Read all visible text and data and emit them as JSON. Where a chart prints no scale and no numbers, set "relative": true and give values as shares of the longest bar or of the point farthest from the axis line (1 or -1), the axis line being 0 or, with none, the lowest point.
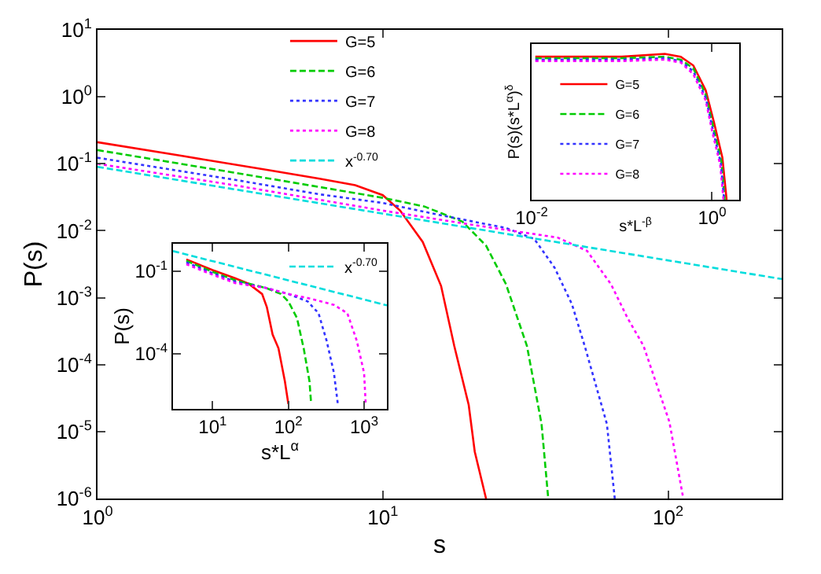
{
  "chart_data": [
    {
      "type": "line",
      "xlabel": "s",
      "ylabel": "P(s)",
      "log": "xy",
      "legend": "top left",
      "xlim": [
        1,
        250
      ],
      "ylim": [
        1e-06,
        10
      ],
      "xticks": [
        {
          "value": 1,
          "label": "10$^{0}$"
        },
        {
          "value": 10,
          "label": "10$^{1}$"
        },
        {
          "value": 100,
          "label": "10$^{2}$"
        }
      ],
      "yticks": [
        {
          "value": 1e-06,
          "label": "10$^{-6}$"
        },
        {
          "value": 1e-05,
          "label": "10$^{-5}$"
        },
        {
          "value": 0.0001,
          "label": "10$^{-4}$"
        },
        {
          "value": 0.001,
          "label": "10$^{-3}$"
        },
        {
          "value": 0.01,
          "label": "10$^{-2}$"
        },
        {
          "value": 0.1,
          "label": "10$^{-1}$"
        },
        {
          "value": 1,
          "label": "10$^{0}$"
        },
        {
          "value": 10,
          "label": "10$^{1}$"
        }
      ],
      "series": [
        {
          "name": "G=5",
          "color": "#ff0000",
          "line_style": "solid",
          "x": [
            1,
            2,
            4,
            6,
            8,
            10,
            11.5,
            13.8,
            16,
            17.8,
            20,
            21,
            23
          ],
          "values": [
            0.21,
            0.13,
            0.08,
            0.06,
            0.048,
            0.034,
            0.02,
            0.0068,
            0.0015,
            0.00019,
            2.5e-05,
            5e-06,
            1e-06
          ]
        },
        {
          "name": "G=6",
          "color": "#00cc00",
          "line_style": "dashed",
          "x": [
            1,
            3,
            6,
            10,
            14,
            19,
            23,
            27,
            32,
            36,
            38
          ],
          "values": [
            0.16,
            0.074,
            0.045,
            0.031,
            0.023,
            0.0137,
            0.006,
            0.0016,
            0.00019,
            1.3e-05,
            1e-06
          ]
        },
        {
          "name": "G=7",
          "color": "#3333ff",
          "line_style": "dotted",
          "x": [
            1,
            3,
            6,
            10,
            16,
            27,
            34,
            40,
            46,
            51,
            61,
            65
          ],
          "values": [
            0.123,
            0.058,
            0.035,
            0.026,
            0.017,
            0.011,
            0.0075,
            0.0028,
            0.0008,
            0.00019,
            1.3e-05,
            1e-06
          ]
        },
        {
          "name": "G=8",
          "color": "#ff00ff",
          "line_style": "dotted",
          "x": [
            1,
            3,
            6,
            10,
            20,
            41,
            52,
            63,
            72,
            82,
            101,
            113
          ],
          "values": [
            0.1,
            0.048,
            0.029,
            0.02,
            0.0125,
            0.0079,
            0.005,
            0.0016,
            0.0005,
            0.00019,
            1.4e-05,
            1e-06
          ]
        },
        {
          "name": "x$^{-0.70}$",
          "color": "#00dddd",
          "line_style": "dashed",
          "x": [
            1,
            250
          ],
          "values": [
            0.09,
            0.0019
          ]
        }
      ]
    },
    {
      "type": "line",
      "xlabel": "s*L$^{-β}$",
      "ylabel": "P(s)(s*L$^{α}$)$^{δ}$",
      "log": "x",
      "relative": true,
      "legend": "bottom left",
      "xlim": [
        0.01,
        2
      ],
      "xticks": [
        {
          "value": 0.01,
          "label": "10$^{-2}$"
        },
        {
          "value": 1,
          "label": "10$^{0}$"
        }
      ],
      "series": [
        {
          "name": "G=5",
          "color": "#ff0000",
          "line_style": "solid",
          "x": [
            0.011,
            0.1,
            0.3,
            0.45,
            0.62,
            0.85,
            1.05,
            1.3,
            1.45
          ],
          "values": [
            0.98,
            0.98,
            1,
            0.98,
            0.92,
            0.75,
            0.53,
            0.29,
            0
          ]
        },
        {
          "name": "G=6",
          "color": "#00cc00",
          "line_style": "dashed",
          "x": [
            0.011,
            0.1,
            0.3,
            0.45,
            0.62,
            0.85,
            1.03,
            1.27,
            1.38
          ],
          "values": [
            0.97,
            0.97,
            0.98,
            0.96,
            0.9,
            0.72,
            0.5,
            0.26,
            0
          ]
        },
        {
          "name": "G=7",
          "color": "#3333ff",
          "line_style": "dotted",
          "x": [
            0.011,
            0.1,
            0.3,
            0.45,
            0.62,
            0.85,
            1.02,
            1.25,
            1.36
          ],
          "values": [
            0.96,
            0.96,
            0.97,
            0.95,
            0.88,
            0.7,
            0.48,
            0.25,
            0
          ]
        },
        {
          "name": "G=8",
          "color": "#ff00ff",
          "line_style": "dotted",
          "x": [
            0.011,
            0.1,
            0.3,
            0.45,
            0.62,
            0.85,
            1.01,
            1.23,
            1.34
          ],
          "values": [
            0.95,
            0.95,
            0.96,
            0.94,
            0.86,
            0.68,
            0.46,
            0.24,
            0
          ]
        }
      ]
    },
    {
      "type": "line",
      "xlabel": "s*L$^{α}$",
      "ylabel": "P(s)",
      "log": "xy",
      "legend": "top right",
      "xlim": [
        3,
        2000
      ],
      "ylim": [
        1e-06,
        1
      ],
      "xticks": [
        {
          "value": 10,
          "label": "10$^{1}$"
        },
        {
          "value": 100,
          "label": "10$^{2}$"
        },
        {
          "value": 1000,
          "label": "10$^{3}$"
        }
      ],
      "yticks": [
        {
          "value": 0.0001,
          "label": "10$^{-4}$"
        },
        {
          "value": 0.1,
          "label": "10$^{-1}$"
        }
      ],
      "series": [
        {
          "color": "#ff0000",
          "line_style": "solid",
          "x": [
            4.5,
            10,
            20,
            30,
            45,
            52,
            62,
            74,
            90,
            100
          ],
          "values": [
            0.27,
            0.11,
            0.055,
            0.035,
            0.015,
            0.005,
            0.0005,
            0.00016,
            1e-05,
            1.5e-06
          ]
        },
        {
          "color": "#00cc00",
          "line_style": "dashed",
          "x": [
            4.5,
            10,
            20,
            50,
            80,
            100,
            130,
            160,
            190,
            200
          ],
          "values": [
            0.24,
            0.095,
            0.047,
            0.025,
            0.015,
            0.008,
            0.002,
            0.00015,
            1e-05,
            1.5e-06
          ]
        },
        {
          "color": "#3333ff",
          "line_style": "dotted",
          "x": [
            4.5,
            10,
            20,
            50,
            100,
            180,
            250,
            320,
            400,
            450
          ],
          "values": [
            0.21,
            0.085,
            0.042,
            0.025,
            0.015,
            0.008,
            0.003,
            0.0003,
            2e-05,
            1.5e-06
          ]
        },
        {
          "color": "#ff00ff",
          "line_style": "dotted",
          "x": [
            4.5,
            10,
            20,
            50,
            100,
            200,
            400,
            600,
            800,
            1000,
            1050
          ],
          "values": [
            0.18,
            0.075,
            0.037,
            0.025,
            0.015,
            0.01,
            0.006,
            0.003,
            0.0003,
            2e-05,
            1.5e-06
          ]
        },
        {
          "name": "x$^{-0.70}$",
          "color": "#00dddd",
          "line_style": "dashed",
          "x": [
            3,
            2000
          ],
          "values": [
            0.54,
            0.0058
          ]
        }
      ]
    }
  ]
}
